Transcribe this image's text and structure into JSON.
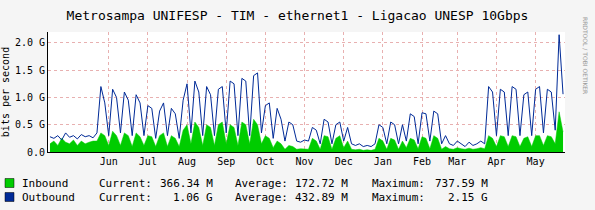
{
  "chart_data": {
    "type": "line",
    "title": "Metrosampa UNIFESP - TIM - ethernet1 - Ligacao UNESP 10Gbps",
    "y_label": "bits per second",
    "watermark": "RRDTOOL / TOBI OETIKER",
    "grid": true,
    "legend": "bottom",
    "ylim": [
      0,
      2200000000.0
    ],
    "yticks": [
      {
        "value": 0,
        "label": "0.0"
      },
      {
        "value": 500000000.0,
        "label": "0.5 G"
      },
      {
        "value": 1000000000.0,
        "label": "1.0 G"
      },
      {
        "value": 1500000000.0,
        "label": "1.5 G"
      },
      {
        "value": 2000000000.0,
        "label": "2.0 G"
      }
    ],
    "categories": [
      null,
      null,
      null,
      null,
      null,
      null,
      null,
      null,
      null,
      null,
      null,
      null,
      null,
      null,
      null,
      "Jun",
      null,
      null,
      null,
      null,
      null,
      null,
      null,
      null,
      null,
      "Jul",
      null,
      null,
      null,
      null,
      null,
      null,
      null,
      null,
      null,
      "Aug",
      null,
      null,
      null,
      null,
      null,
      null,
      null,
      null,
      null,
      "Sep",
      null,
      null,
      null,
      null,
      null,
      null,
      null,
      null,
      null,
      "Oct",
      null,
      null,
      null,
      null,
      null,
      null,
      null,
      null,
      null,
      "Nov",
      null,
      null,
      null,
      null,
      null,
      null,
      null,
      null,
      null,
      "Dec",
      null,
      null,
      null,
      null,
      null,
      null,
      null,
      null,
      null,
      "Jan",
      null,
      null,
      null,
      null,
      null,
      null,
      null,
      null,
      null,
      "Feb",
      null,
      null,
      null,
      null,
      null,
      null,
      null,
      null,
      "Mar",
      null,
      null,
      null,
      null,
      null,
      null,
      null,
      null,
      null,
      "Apr",
      null,
      null,
      null,
      null,
      null,
      null,
      null,
      null,
      null,
      "May",
      null,
      null,
      null,
      null,
      null,
      null,
      null
    ],
    "series": [
      {
        "name": "Inbound",
        "type": "area",
        "color": "#00cc00",
        "stats": [
          {
            "label": "Current:",
            "text": "366.34 M"
          },
          {
            "label": "Average:",
            "text": "172.72 M"
          },
          {
            "label": "Maximum:",
            "text": "737.59 M"
          }
        ],
        "values": [
          150000000.0,
          200000000.0,
          120000000.0,
          250000000.0,
          180000000.0,
          150000000.0,
          220000000.0,
          120000000.0,
          200000000.0,
          150000000.0,
          180000000.0,
          200000000.0,
          200000000.0,
          350000000.0,
          300000000.0,
          120000000.0,
          380000000.0,
          300000000.0,
          120000000.0,
          350000000.0,
          300000000.0,
          100000000.0,
          350000000.0,
          280000000.0,
          120000000.0,
          300000000.0,
          280000000.0,
          100000000.0,
          300000000.0,
          350000000.0,
          100000000.0,
          300000000.0,
          250000000.0,
          100000000.0,
          400000000.0,
          500000000.0,
          150000000.0,
          550000000.0,
          450000000.0,
          120000000.0,
          500000000.0,
          450000000.0,
          120000000.0,
          500000000.0,
          550000000.0,
          150000000.0,
          500000000.0,
          450000000.0,
          120000000.0,
          550000000.0,
          500000000.0,
          150000000.0,
          600000000.0,
          500000000.0,
          150000000.0,
          300000000.0,
          250000000.0,
          80000000.0,
          200000000.0,
          150000000.0,
          50000000.0,
          120000000.0,
          100000000.0,
          50000000.0,
          60000000.0,
          50000000.0,
          50000000.0,
          250000000.0,
          200000000.0,
          50000000.0,
          300000000.0,
          280000000.0,
          50000000.0,
          250000000.0,
          300000000.0,
          80000000.0,
          200000000.0,
          50000000.0,
          40000000.0,
          50000000.0,
          30000000.0,
          40000000.0,
          30000000.0,
          50000000.0,
          250000000.0,
          200000000.0,
          50000000.0,
          250000000.0,
          220000000.0,
          50000000.0,
          200000000.0,
          80000000.0,
          250000000.0,
          220000000.0,
          60000000.0,
          280000000.0,
          250000000.0,
          60000000.0,
          300000000.0,
          250000000.0,
          50000000.0,
          100000000.0,
          60000000.0,
          50000000.0,
          80000000.0,
          60000000.0,
          50000000.0,
          70000000.0,
          50000000.0,
          60000000.0,
          80000000.0,
          60000000.0,
          300000000.0,
          250000000.0,
          100000000.0,
          300000000.0,
          280000000.0,
          100000000.0,
          300000000.0,
          280000000.0,
          100000000.0,
          250000000.0,
          280000000.0,
          100000000.0,
          300000000.0,
          300000000.0,
          120000000.0,
          300000000.0,
          280000000.0,
          150000000.0,
          737590000.0,
          366340000.0
        ]
      },
      {
        "name": "Outbound",
        "type": "line",
        "color": "#002a97",
        "stats": [
          {
            "label": "Current:",
            "text": "1.06 G"
          },
          {
            "label": "Average:",
            "text": "432.89 M"
          },
          {
            "label": "Maximum:",
            "text": "2.15 G"
          }
        ],
        "values": [
          280000000.0,
          250000000.0,
          300000000.0,
          220000000.0,
          350000000.0,
          270000000.0,
          300000000.0,
          240000000.0,
          320000000.0,
          280000000.0,
          300000000.0,
          260000000.0,
          350000000.0,
          1200000000.0,
          900000000.0,
          300000000.0,
          1150000000.0,
          1000000000.0,
          350000000.0,
          1100000000.0,
          950000000.0,
          300000000.0,
          1050000000.0,
          900000000.0,
          300000000.0,
          850000000.0,
          800000000.0,
          250000000.0,
          750000000.0,
          900000000.0,
          300000000.0,
          800000000.0,
          700000000.0,
          250000000.0,
          950000000.0,
          1250000000.0,
          350000000.0,
          1300000000.0,
          1100000000.0,
          300000000.0,
          1200000000.0,
          1050000000.0,
          300000000.0,
          1150000000.0,
          1200000000.0,
          350000000.0,
          1300000000.0,
          1250000000.0,
          300000000.0,
          1350000000.0,
          1300000000.0,
          300000000.0,
          1400000000.0,
          1450000000.0,
          350000000.0,
          850000000.0,
          900000000.0,
          250000000.0,
          800000000.0,
          600000000.0,
          200000000.0,
          550000000.0,
          500000000.0,
          200000000.0,
          180000000.0,
          220000000.0,
          200000000.0,
          450000000.0,
          400000000.0,
          150000000.0,
          600000000.0,
          550000000.0,
          150000000.0,
          500000000.0,
          550000000.0,
          200000000.0,
          450000000.0,
          150000000.0,
          120000000.0,
          150000000.0,
          100000000.0,
          120000000.0,
          100000000.0,
          150000000.0,
          500000000.0,
          450000000.0,
          150000000.0,
          550000000.0,
          500000000.0,
          150000000.0,
          500000000.0,
          200000000.0,
          700000000.0,
          650000000.0,
          150000000.0,
          720000000.0,
          700000000.0,
          200000000.0,
          750000000.0,
          700000000.0,
          150000000.0,
          300000000.0,
          150000000.0,
          120000000.0,
          200000000.0,
          150000000.0,
          100000000.0,
          180000000.0,
          120000000.0,
          150000000.0,
          200000000.0,
          150000000.0,
          1200000000.0,
          1100000000.0,
          300000000.0,
          1150000000.0,
          1100000000.0,
          300000000.0,
          1200000000.0,
          1150000000.0,
          300000000.0,
          1050000000.0,
          1100000000.0,
          300000000.0,
          1150000000.0,
          1200000000.0,
          350000000.0,
          1150000000.0,
          1100000000.0,
          400000000.0,
          2150000000.0,
          1060000000.0
        ]
      }
    ]
  }
}
